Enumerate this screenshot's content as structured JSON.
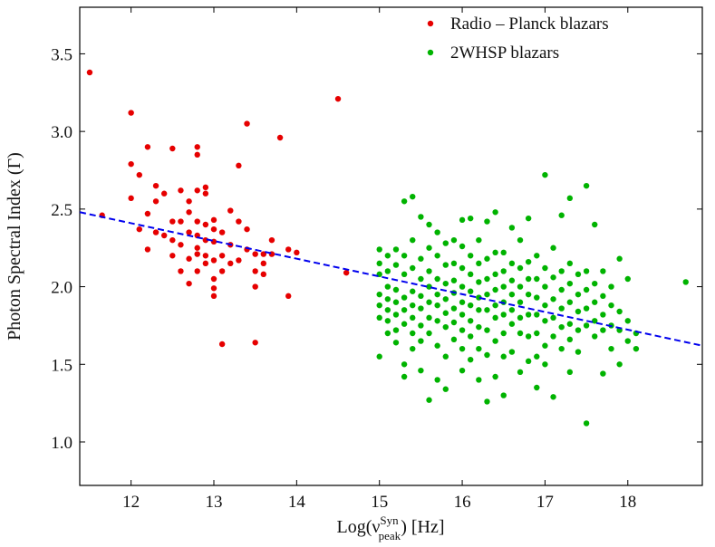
{
  "chart_data": {
    "type": "scatter",
    "xlabel": {
      "base": "Log(ν",
      "sup": "Syn",
      "sub": "peak",
      "tail": ") [Hz]"
    },
    "ylabel": "Photon Spectral Index (Γ)",
    "xlim": [
      11.38,
      18.9
    ],
    "ylim": [
      0.72,
      3.8
    ],
    "xticks": [
      12,
      13,
      14,
      15,
      16,
      17,
      18
    ],
    "yticks": [
      {
        "value": 1,
        "label": "1.0"
      },
      1.5,
      {
        "value": 2,
        "label": "2.0"
      },
      2.5,
      {
        "value": 3,
        "label": "3.0"
      },
      3.5
    ],
    "legend": "upper right",
    "series": [
      {
        "name": "Radio – Planck blazars",
        "color": "#e60000",
        "x": [
          11.5,
          11.65,
          12.0,
          12.0,
          12.0,
          12.1,
          12.1,
          12.2,
          12.2,
          12.2,
          12.3,
          12.3,
          12.3,
          12.4,
          12.4,
          12.5,
          12.5,
          12.5,
          12.5,
          12.6,
          12.6,
          12.6,
          12.6,
          12.7,
          12.7,
          12.7,
          12.7,
          12.7,
          12.8,
          12.8,
          12.8,
          12.8,
          12.8,
          12.8,
          12.8,
          12.8,
          12.9,
          12.9,
          12.9,
          12.9,
          12.9,
          12.9,
          13.0,
          13.0,
          13.0,
          13.0,
          13.0,
          13.0,
          13.0,
          13.1,
          13.1,
          13.1,
          13.1,
          13.2,
          13.2,
          13.2,
          13.3,
          13.3,
          13.3,
          13.4,
          13.4,
          13.4,
          13.5,
          13.5,
          13.5,
          13.5,
          13.6,
          13.6,
          13.6,
          13.7,
          13.7,
          13.8,
          13.9,
          13.9,
          14.0,
          14.5,
          14.6
        ],
        "values": [
          3.38,
          2.46,
          3.12,
          2.79,
          2.57,
          2.72,
          2.37,
          2.9,
          2.47,
          2.24,
          2.65,
          2.35,
          2.55,
          2.6,
          2.33,
          2.89,
          2.42,
          2.3,
          2.2,
          2.62,
          2.42,
          2.27,
          2.1,
          2.55,
          2.48,
          2.35,
          2.18,
          2.02,
          2.9,
          2.85,
          2.62,
          2.42,
          2.33,
          2.25,
          2.21,
          2.1,
          2.64,
          2.6,
          2.4,
          2.3,
          2.2,
          2.15,
          2.43,
          2.37,
          2.29,
          2.17,
          2.05,
          1.99,
          1.94,
          2.35,
          2.2,
          2.1,
          1.63,
          2.49,
          2.27,
          2.15,
          2.78,
          2.42,
          2.17,
          3.05,
          2.37,
          2.24,
          2.21,
          2.1,
          2.0,
          1.64,
          2.21,
          2.15,
          2.08,
          2.3,
          2.21,
          2.96,
          2.24,
          1.94,
          2.22,
          3.21,
          2.09
        ]
      },
      {
        "name": "2WHSP blazars",
        "color": "#00b300",
        "x": [
          15.0,
          15.0,
          15.0,
          15.0,
          15.0,
          15.0,
          15.0,
          15.1,
          15.1,
          15.1,
          15.1,
          15.1,
          15.1,
          15.1,
          15.2,
          15.2,
          15.2,
          15.2,
          15.2,
          15.2,
          15.2,
          15.3,
          15.3,
          15.3,
          15.3,
          15.3,
          15.3,
          15.3,
          15.3,
          15.4,
          15.4,
          15.4,
          15.4,
          15.4,
          15.4,
          15.4,
          15.4,
          15.5,
          15.5,
          15.5,
          15.5,
          15.5,
          15.5,
          15.5,
          15.5,
          15.6,
          15.6,
          15.6,
          15.6,
          15.6,
          15.6,
          15.6,
          15.6,
          15.7,
          15.7,
          15.7,
          15.7,
          15.7,
          15.7,
          15.7,
          15.7,
          15.8,
          15.8,
          15.8,
          15.8,
          15.8,
          15.8,
          15.8,
          15.8,
          15.9,
          15.9,
          15.9,
          15.9,
          15.9,
          15.9,
          15.9,
          16.0,
          16.0,
          16.0,
          16.0,
          16.0,
          16.0,
          16.0,
          16.0,
          16.0,
          16.1,
          16.1,
          16.1,
          16.1,
          16.1,
          16.1,
          16.1,
          16.1,
          16.2,
          16.2,
          16.2,
          16.2,
          16.2,
          16.2,
          16.2,
          16.2,
          16.3,
          16.3,
          16.3,
          16.3,
          16.3,
          16.3,
          16.3,
          16.3,
          16.4,
          16.4,
          16.4,
          16.4,
          16.4,
          16.4,
          16.4,
          16.4,
          16.5,
          16.5,
          16.5,
          16.5,
          16.5,
          16.5,
          16.5,
          16.5,
          16.6,
          16.6,
          16.6,
          16.6,
          16.6,
          16.6,
          16.6,
          16.7,
          16.7,
          16.7,
          16.7,
          16.7,
          16.7,
          16.7,
          16.8,
          16.8,
          16.8,
          16.8,
          16.8,
          16.8,
          16.8,
          16.9,
          16.9,
          16.9,
          16.9,
          16.9,
          16.9,
          16.9,
          17.0,
          17.0,
          17.0,
          17.0,
          17.0,
          17.0,
          17.0,
          17.1,
          17.1,
          17.1,
          17.1,
          17.1,
          17.1,
          17.2,
          17.2,
          17.2,
          17.2,
          17.2,
          17.2,
          17.3,
          17.3,
          17.3,
          17.3,
          17.3,
          17.3,
          17.3,
          17.4,
          17.4,
          17.4,
          17.4,
          17.4,
          17.5,
          17.5,
          17.5,
          17.5,
          17.5,
          17.5,
          17.6,
          17.6,
          17.6,
          17.6,
          17.6,
          17.7,
          17.7,
          17.7,
          17.7,
          17.7,
          17.8,
          17.8,
          17.8,
          17.8,
          17.9,
          17.9,
          17.9,
          17.9,
          18.0,
          18.0,
          18.0,
          18.1,
          18.1,
          18.7
        ],
        "values": [
          2.24,
          2.15,
          2.08,
          1.95,
          1.88,
          1.8,
          1.55,
          2.2,
          2.1,
          2.0,
          1.92,
          1.85,
          1.78,
          1.7,
          2.24,
          2.14,
          1.98,
          1.9,
          1.82,
          1.72,
          1.64,
          2.55,
          2.2,
          2.08,
          1.93,
          1.85,
          1.76,
          1.5,
          1.42,
          2.58,
          2.3,
          2.12,
          1.97,
          1.88,
          1.8,
          1.7,
          1.6,
          2.45,
          2.18,
          2.05,
          1.94,
          1.86,
          1.75,
          1.65,
          1.46,
          2.4,
          2.25,
          2.1,
          2.0,
          1.9,
          1.8,
          1.7,
          1.27,
          2.35,
          2.2,
          2.05,
          1.95,
          1.88,
          1.78,
          1.62,
          1.4,
          2.28,
          2.14,
          2.02,
          1.92,
          1.83,
          1.74,
          1.55,
          1.34,
          2.3,
          2.15,
          2.04,
          1.96,
          1.86,
          1.77,
          1.66,
          2.43,
          2.26,
          2.12,
          2.0,
          1.9,
          1.82,
          1.72,
          1.6,
          1.46,
          2.44,
          2.2,
          2.08,
          1.97,
          1.88,
          1.78,
          1.68,
          1.53,
          2.3,
          2.15,
          2.03,
          1.93,
          1.85,
          1.74,
          1.6,
          1.4,
          2.42,
          2.18,
          2.05,
          1.95,
          1.85,
          1.72,
          1.56,
          1.26,
          2.48,
          2.22,
          2.08,
          1.98,
          1.88,
          1.8,
          1.65,
          1.42,
          2.22,
          2.1,
          2.0,
          1.9,
          1.82,
          1.7,
          1.55,
          1.3,
          2.38,
          2.15,
          2.04,
          1.95,
          1.85,
          1.76,
          1.58,
          2.3,
          2.12,
          2.0,
          1.9,
          1.8,
          1.7,
          1.45,
          2.44,
          2.16,
          2.05,
          1.95,
          1.82,
          1.68,
          1.52,
          2.2,
          2.05,
          1.93,
          1.82,
          1.7,
          1.55,
          1.35,
          2.72,
          2.12,
          2.0,
          1.88,
          1.78,
          1.62,
          1.5,
          2.25,
          2.06,
          1.92,
          1.8,
          1.68,
          1.29,
          2.46,
          2.1,
          1.98,
          1.86,
          1.74,
          1.6,
          2.57,
          2.15,
          2.02,
          1.9,
          1.76,
          1.66,
          1.45,
          2.08,
          1.95,
          1.84,
          1.72,
          1.58,
          2.65,
          2.1,
          1.98,
          1.86,
          1.75,
          1.12,
          2.4,
          2.02,
          1.9,
          1.78,
          1.68,
          2.1,
          1.94,
          1.82,
          1.72,
          1.44,
          2.0,
          1.88,
          1.75,
          1.6,
          2.18,
          1.84,
          1.72,
          1.5,
          2.05,
          1.78,
          1.65,
          1.7,
          1.6,
          2.03
        ]
      }
    ],
    "fit_line": {
      "color": "#0000ee",
      "x": [
        11.38,
        18.9
      ],
      "values": [
        2.48,
        1.62
      ]
    }
  }
}
